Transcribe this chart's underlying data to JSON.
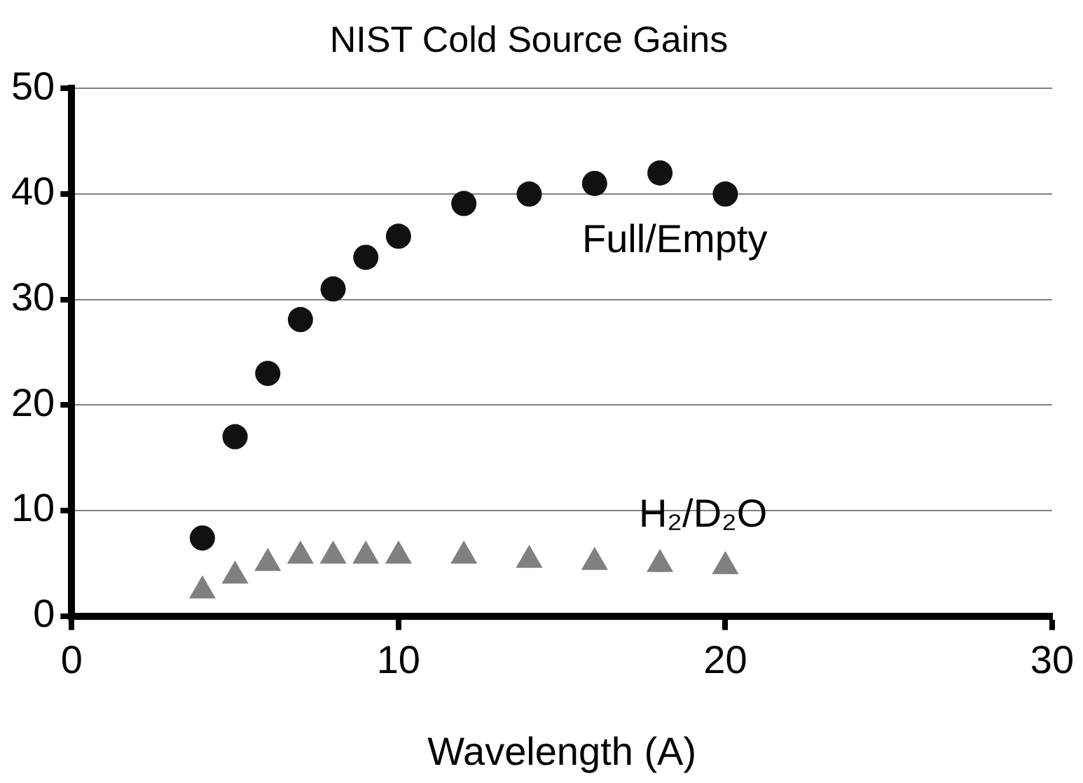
{
  "chart_data": {
    "type": "scatter",
    "title": "NIST Cold Source Gains",
    "xlabel": "Wavelength (A)",
    "x": [
      4,
      5,
      6,
      7,
      8,
      9,
      10,
      12,
      14,
      16,
      18,
      20
    ],
    "series": [
      {
        "name": "Full/Empty",
        "color": "#111111",
        "marker": "circle",
        "values": [
          7.4,
          17,
          23,
          28.1,
          31,
          34,
          36,
          39.1,
          40,
          41,
          42,
          40
        ]
      },
      {
        "name": "H₂/D₂O",
        "color": "#808080",
        "marker": "triangle",
        "values": [
          2.4,
          3.8,
          5,
          5.7,
          5.7,
          5.7,
          5.7,
          5.7,
          5.3,
          5.1,
          4.9,
          4.7
        ]
      }
    ],
    "xlim": [
      0,
      30
    ],
    "xticks": [
      0,
      10,
      20,
      30
    ],
    "ylim": [
      0,
      50
    ],
    "yticks": [
      0,
      10,
      20,
      30,
      40,
      50
    ],
    "grid": "y",
    "legend": false
  }
}
